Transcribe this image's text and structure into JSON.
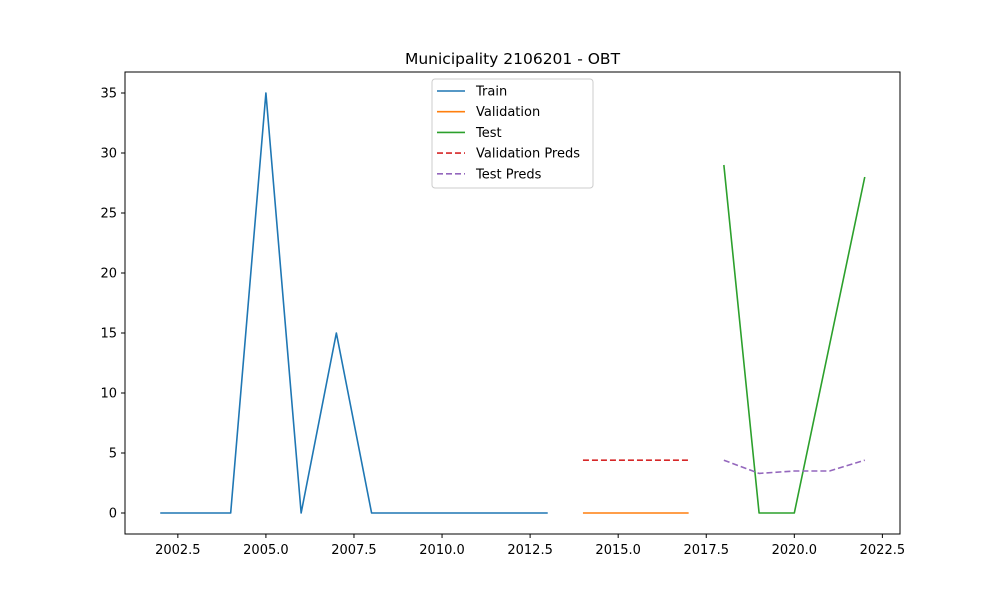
{
  "chart_data": {
    "type": "line",
    "title": "Municipality 2106201 - OBT",
    "xlabel": "",
    "ylabel": "",
    "xlim": [
      2001.0,
      2023.0
    ],
    "ylim": [
      -1.75,
      36.75
    ],
    "xticks": [
      2002.5,
      2005.0,
      2007.5,
      2010.0,
      2012.5,
      2015.0,
      2017.5,
      2020.0,
      2022.5
    ],
    "xtick_labels": [
      "2002.5",
      "2005.0",
      "2007.5",
      "2010.0",
      "2012.5",
      "2015.0",
      "2017.5",
      "2020.0",
      "2022.5"
    ],
    "yticks": [
      0,
      5,
      10,
      15,
      20,
      25,
      30,
      35
    ],
    "ytick_labels": [
      "0",
      "5",
      "10",
      "15",
      "20",
      "25",
      "30",
      "35"
    ],
    "grid": false,
    "legend_position": "top-center",
    "series": [
      {
        "name": "Train",
        "color": "#1f77b4",
        "dash": "solid",
        "x": [
          2002,
          2003,
          2004,
          2005,
          2006,
          2007,
          2008,
          2009,
          2010,
          2011,
          2012,
          2013
        ],
        "y": [
          0,
          0,
          0,
          35,
          0,
          15,
          0,
          0,
          0,
          0,
          0,
          0
        ]
      },
      {
        "name": "Validation",
        "color": "#ff7f0e",
        "dash": "solid",
        "x": [
          2014,
          2015,
          2016,
          2017
        ],
        "y": [
          0,
          0,
          0,
          0
        ]
      },
      {
        "name": "Test",
        "color": "#2ca02c",
        "dash": "solid",
        "x": [
          2018,
          2019,
          2020,
          2021,
          2022
        ],
        "y": [
          29,
          0,
          0,
          14,
          28
        ]
      },
      {
        "name": "Validation Preds",
        "color": "#d62728",
        "dash": "dashed",
        "x": [
          2014,
          2015,
          2016,
          2017
        ],
        "y": [
          4.4,
          4.4,
          4.4,
          4.4
        ]
      },
      {
        "name": "Test Preds",
        "color": "#9467bd",
        "dash": "dashed",
        "x": [
          2018,
          2019,
          2020,
          2021,
          2022
        ],
        "y": [
          4.4,
          3.3,
          3.5,
          3.5,
          4.4
        ]
      }
    ]
  }
}
